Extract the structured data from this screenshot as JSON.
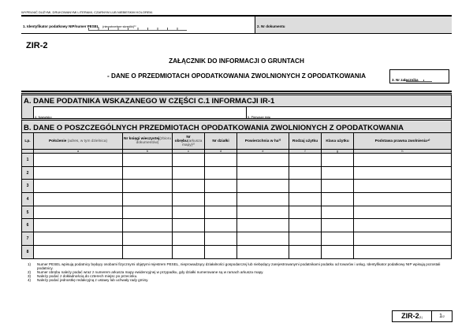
{
  "instruction": "WYPEŁNIĆ DUŻYMI, DRUKOWANYMI LITERAMI, CZARNYM LUB NIEBIESKIM KOLOREM.",
  "field1": {
    "label": "1. Identyfikator podatkowy NIP/numer PESEL",
    "note": "(niepotrzebne skreślić)¹⁾"
  },
  "field2": {
    "label": "2. Nr dokumentu"
  },
  "form_code": "ZIR-2",
  "title": "ZAŁĄCZNIK DO INFORMACJI O GRUNTACH",
  "subtitle": "- DANE O PRZEDMIOTACH OPODATKOWANIA ZWOLNIONYCH Z OPODATKOWANIA",
  "field3": {
    "label": "3. Nr załącznika"
  },
  "sectionA": {
    "title": "A.  DANE PODATNIKA WSKAZANEGO W CZĘŚCI C.1 INFORMACJI IR-1",
    "field4": "4. Nazwisko",
    "field5": "5. Pierwsze imię"
  },
  "sectionB": {
    "title": "B.  DANE O POSZCZEGÓLNYCH PRZEDMIOTACH OPODATKOWANIA ZWOLNIONYCH Z OPODATKOWANIA",
    "columns": [
      {
        "main": "Lp.",
        "sub": ""
      },
      {
        "main": "Położenie",
        "sub": " (adres, w tym dzielnica)"
      },
      {
        "main": "Nr księgi wieczystej",
        "sub": "(zbioru dokumentów)"
      },
      {
        "main": "Nr obrębu",
        "sub": "(arkusza mapy)²⁾"
      },
      {
        "main": "Nr działki",
        "sub": ""
      },
      {
        "main": "Powierzchnia w ha³⁾",
        "sub": ""
      },
      {
        "main": "Rodzaj użytku",
        "sub": ""
      },
      {
        "main": "Klasa użytku",
        "sub": ""
      },
      {
        "main": "Podstawa prawna zwolnienia⁴⁾",
        "sub": ""
      }
    ],
    "letters": [
      "",
      "a",
      "b",
      "c",
      "d",
      "e",
      "f",
      "g",
      "h"
    ],
    "rows": [
      "1",
      "2",
      "3",
      "4",
      "5",
      "6",
      "7",
      "8"
    ]
  },
  "footnotes": [
    {
      "k": "1)",
      "t": "Numer PESEL wpisują podatnicy będący osobami fizycznymi objętymi rejestrem PESEL, nieprowadzący działalności gospodarczej lub niebędący zarejestrowanymi podatnikami podatku od towarów i usług. Identyfikator podatkowy NIP wpisują pozostali podatnicy."
    },
    {
      "k": "2)",
      "t": "Numer obrębu należy podać wraz z numerem arkusza mapy ewidencyjnej w przypadku, gdy działki numerowane są w ramach arkusza mapy."
    },
    {
      "k": "3)",
      "t": "Należy podać z dokładnością do czterech miejsc po przecinku."
    },
    {
      "k": "4)",
      "t": "Należy podać jednostkę redakcyjną z ustawy lub uchwały rady gminy."
    }
  ],
  "footer": {
    "code": "ZIR-2",
    "version": "(1)",
    "page": "1",
    "page_suffix": "/2"
  }
}
